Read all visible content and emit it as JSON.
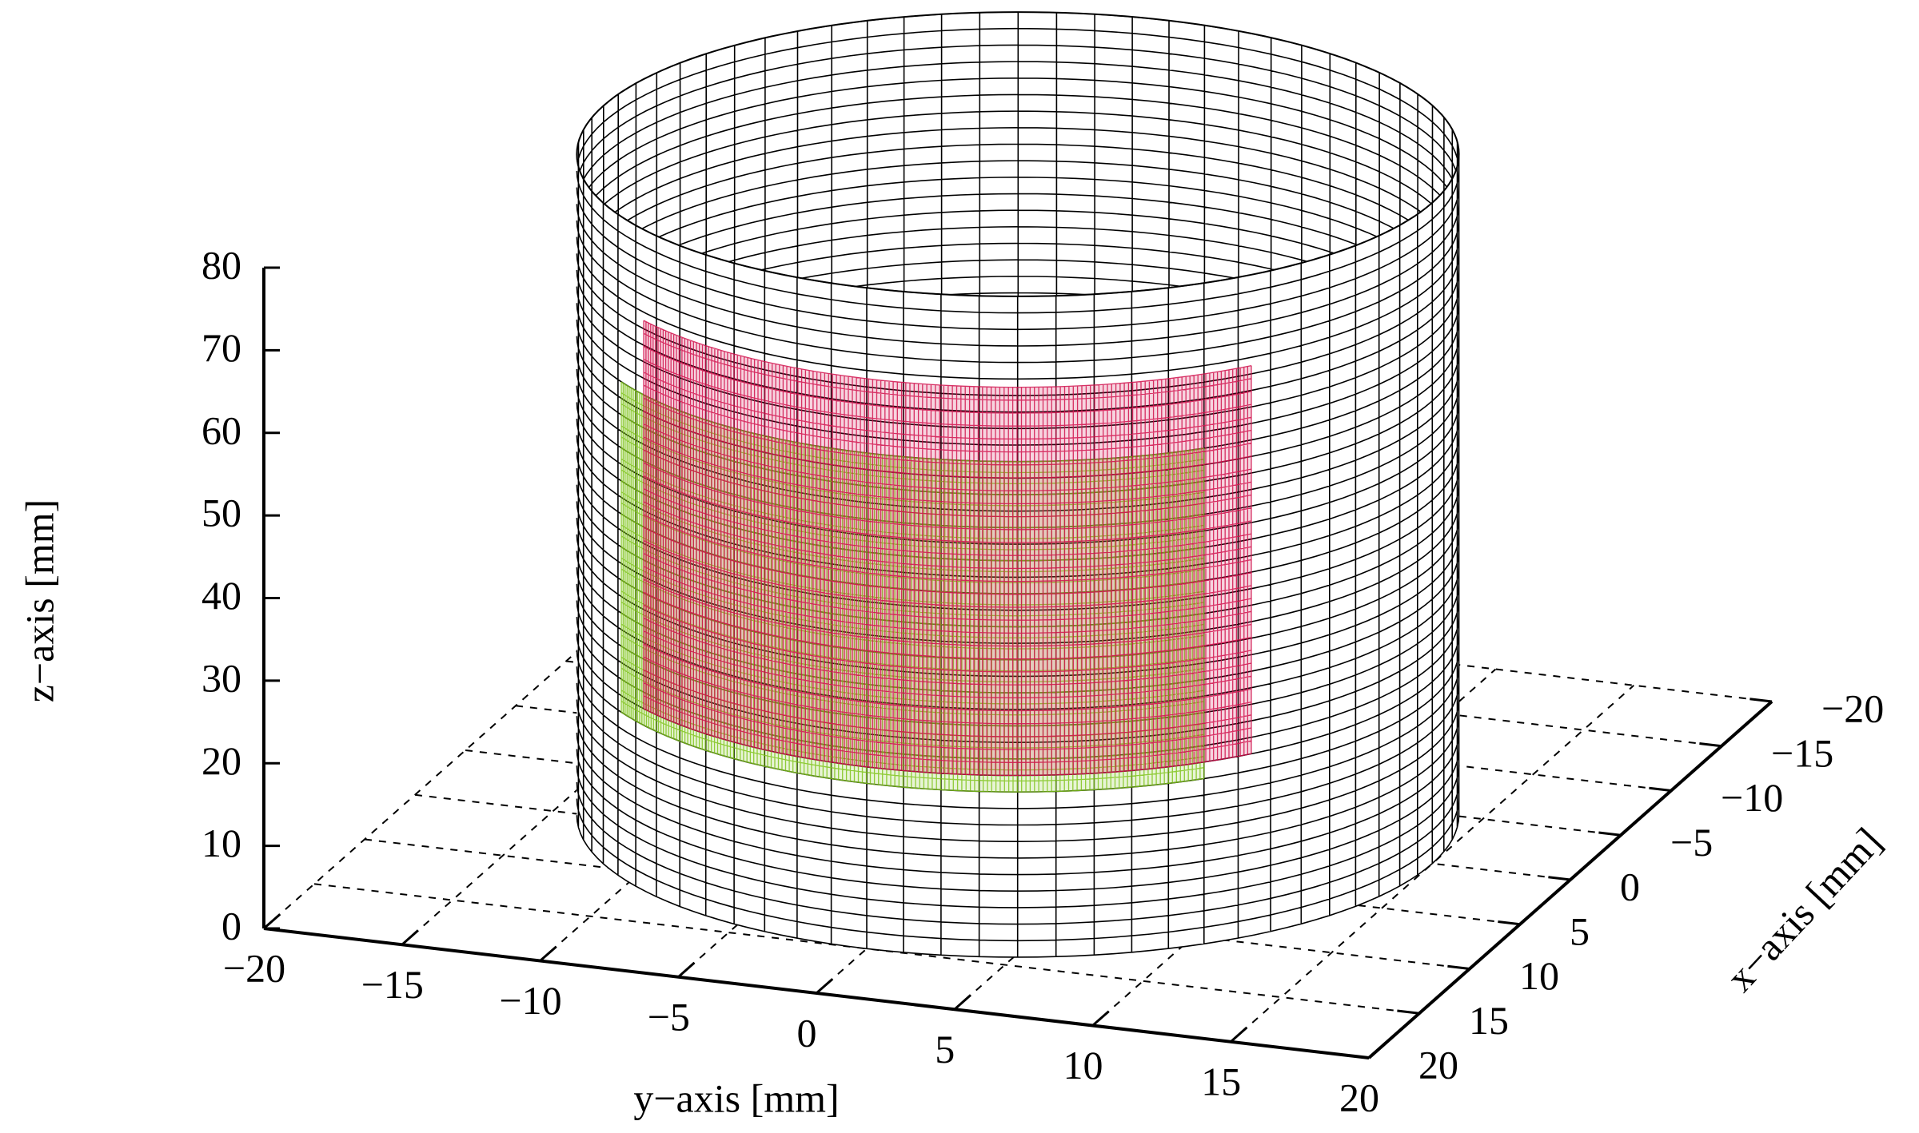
{
  "chart_data": {
    "type": "surface3d",
    "zlabel": "z−axis [mm]",
    "ylabel": "y−axis [mm]",
    "xlabel": "x−axis [mm]",
    "xlim": [
      -20,
      20
    ],
    "ylim": [
      -20,
      20
    ],
    "zlim": [
      0,
      80
    ],
    "xticks": [
      {
        "value": -20,
        "label": "−20"
      },
      {
        "value": -15,
        "label": "−15"
      },
      {
        "value": -10,
        "label": "−10"
      },
      {
        "value": -5,
        "label": "−5"
      },
      0,
      5,
      10,
      15,
      20
    ],
    "yticks": [
      {
        "value": -20,
        "label": "−20"
      },
      {
        "value": -15,
        "label": "−15"
      },
      {
        "value": -10,
        "label": "−10"
      },
      {
        "value": -5,
        "label": "−5"
      },
      0,
      5,
      10,
      15,
      20
    ],
    "zticks": [
      0,
      10,
      20,
      30,
      40,
      50,
      60,
      70,
      80
    ],
    "grid": true,
    "surfaces": [
      {
        "shape": "cylinder",
        "color": "#000000",
        "radius": 15,
        "z": [
          0,
          80
        ]
      },
      {
        "shape": "patch",
        "color": "#7fc31c",
        "radius": 15,
        "angle": [
          -44,
          45
        ],
        "z": [
          20,
          60
        ]
      },
      {
        "shape": "patch",
        "color": "#d0104c",
        "radius": 15,
        "angle": [
          -38,
          52
        ],
        "z": [
          22,
          69
        ]
      }
    ]
  }
}
